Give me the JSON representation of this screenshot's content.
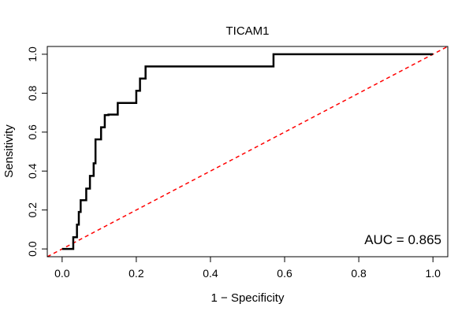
{
  "chart_data": {
    "type": "line",
    "title": "TICAM1",
    "xlabel": "1 − Specificity",
    "ylabel": "Sensitivity",
    "xlim": [
      -0.04,
      1.04
    ],
    "ylim": [
      -0.04,
      1.04
    ],
    "x_ticks": [
      0.0,
      0.2,
      0.4,
      0.6,
      0.8,
      1.0
    ],
    "y_ticks": [
      0.0,
      0.2,
      0.4,
      0.6,
      0.8,
      1.0
    ],
    "x_tick_labels": [
      "0.0",
      "0.2",
      "0.4",
      "0.6",
      "0.8",
      "1.0"
    ],
    "y_tick_labels": [
      "0.0",
      "0.2",
      "0.4",
      "0.6",
      "0.8",
      "1.0"
    ],
    "annotation": "AUC = 0.865",
    "grid": false,
    "series": [
      {
        "name": "ROC curve",
        "color": "#000000",
        "style": "solid",
        "x": [
          0.0,
          0.03,
          0.03,
          0.04,
          0.04,
          0.045,
          0.045,
          0.05,
          0.05,
          0.065,
          0.065,
          0.075,
          0.075,
          0.085,
          0.085,
          0.09,
          0.09,
          0.105,
          0.105,
          0.115,
          0.115,
          0.125,
          0.125,
          0.15,
          0.15,
          0.2,
          0.2,
          0.21,
          0.21,
          0.225,
          0.225,
          0.57,
          0.57,
          1.0
        ],
        "y": [
          0.0,
          0.0,
          0.06,
          0.06,
          0.125,
          0.125,
          0.19,
          0.19,
          0.25,
          0.25,
          0.31,
          0.31,
          0.375,
          0.375,
          0.44,
          0.44,
          0.5625,
          0.5625,
          0.625,
          0.625,
          0.6875,
          0.6875,
          0.69,
          0.69,
          0.75,
          0.75,
          0.8125,
          0.8125,
          0.875,
          0.875,
          0.9375,
          0.9375,
          1.0,
          1.0
        ]
      },
      {
        "name": "Reference diagonal",
        "color": "#ff0000",
        "style": "dashed",
        "x": [
          -0.04,
          1.04
        ],
        "y": [
          -0.04,
          1.04
        ]
      }
    ]
  }
}
